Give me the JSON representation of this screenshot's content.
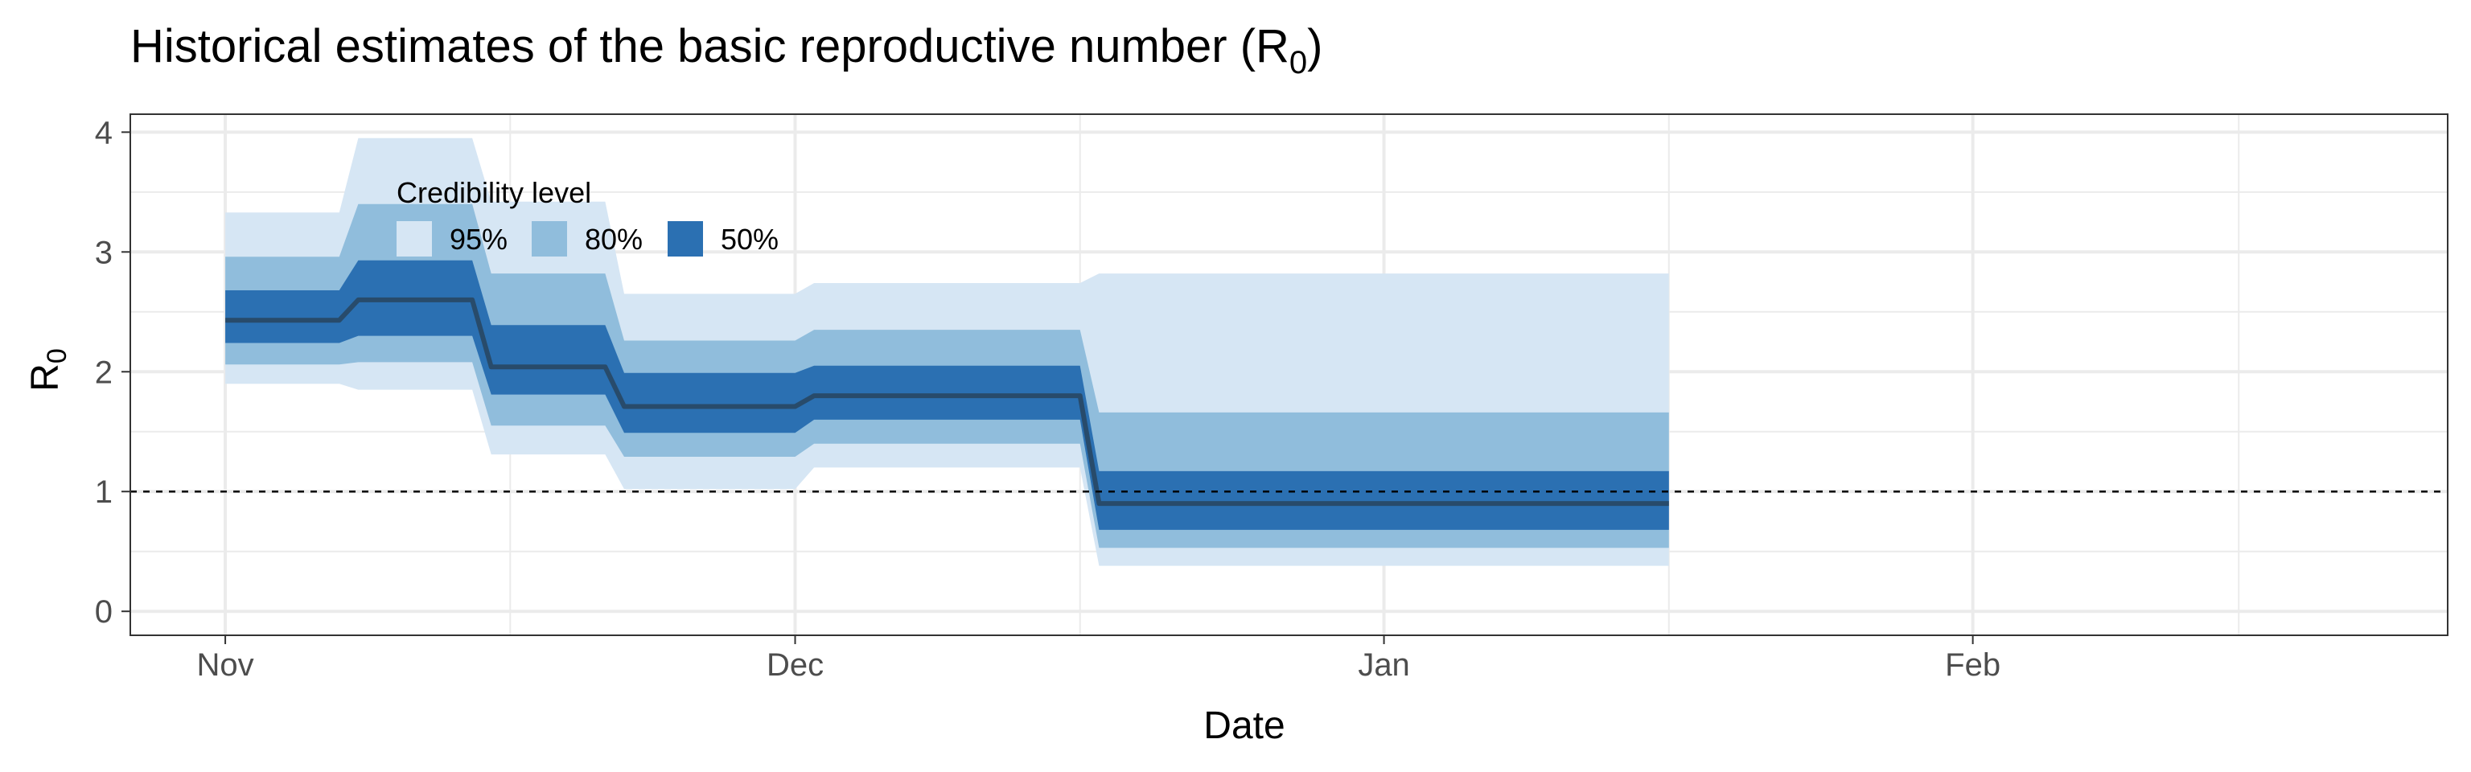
{
  "chart_data": {
    "type": "area",
    "title_text": "Historical estimates of the basic reproductive number (R",
    "title_sub": "0",
    "title_close": ")",
    "xlabel": "Date",
    "ylabel_main": "R",
    "ylabel_sub": "0",
    "x_type": "date",
    "xlim": [
      "2020-10-27",
      "2021-02-26"
    ],
    "ylim": [
      -0.2,
      4.15
    ],
    "grid": true,
    "x_ticks": [
      {
        "date": "2020-11-01",
        "label": "Nov"
      },
      {
        "date": "2020-12-01",
        "label": "Dec"
      },
      {
        "date": "2021-01-01",
        "label": "Jan"
      },
      {
        "date": "2021-02-01",
        "label": "Feb"
      }
    ],
    "x_minor_ticks": [
      "2020-11-16",
      "2020-12-16",
      "2021-01-16",
      "2021-02-15"
    ],
    "y_ticks": [
      0,
      1,
      2,
      3,
      4
    ],
    "y_minor_ticks": [
      0.5,
      1.5,
      2.5,
      3.5
    ],
    "reference_line": {
      "y": 1,
      "style": "dashed"
    },
    "legend": {
      "title": "Credibility level",
      "placement": "top-left",
      "items": [
        {
          "label": "95%",
          "color": "#d6e6f4"
        },
        {
          "label": "80%",
          "color": "#90bddc"
        },
        {
          "label": "50%",
          "color": "#2b70b2"
        }
      ]
    },
    "colors": {
      "ci95": "#d6e6f4",
      "ci80": "#90bddc",
      "ci50": "#2b70b2",
      "median": "#284b6b",
      "grid": "#ebebeb",
      "panel_border": "#333333",
      "reference_line": "#000000"
    },
    "dates": [
      "2020-11-01",
      "2020-11-07",
      "2020-11-08",
      "2020-11-14",
      "2020-11-15",
      "2020-11-21",
      "2020-11-22",
      "2020-12-01",
      "2020-12-02",
      "2020-12-16",
      "2020-12-17",
      "2021-01-16"
    ],
    "median": [
      2.43,
      2.43,
      2.6,
      2.6,
      2.04,
      2.04,
      1.71,
      1.71,
      1.8,
      1.8,
      0.9,
      0.9
    ],
    "ci50": {
      "lower": [
        2.24,
        2.24,
        2.3,
        2.3,
        1.81,
        1.81,
        1.49,
        1.49,
        1.6,
        1.6,
        0.68,
        0.68
      ],
      "upper": [
        2.68,
        2.68,
        2.93,
        2.93,
        2.39,
        2.39,
        1.99,
        1.99,
        2.05,
        2.05,
        1.17,
        1.17
      ]
    },
    "ci80": {
      "lower": [
        2.06,
        2.06,
        2.08,
        2.08,
        1.55,
        1.55,
        1.29,
        1.29,
        1.4,
        1.4,
        0.53,
        0.53
      ],
      "upper": [
        2.96,
        2.96,
        3.4,
        3.4,
        2.82,
        2.82,
        2.26,
        2.26,
        2.35,
        2.35,
        1.66,
        1.66
      ]
    },
    "ci95": {
      "lower": [
        1.9,
        1.9,
        1.85,
        1.85,
        1.31,
        1.31,
        1.02,
        1.02,
        1.2,
        1.2,
        0.38,
        0.38
      ],
      "upper": [
        3.33,
        3.33,
        3.95,
        3.95,
        3.42,
        3.42,
        2.65,
        2.65,
        2.74,
        2.74,
        2.82,
        2.82
      ]
    }
  }
}
